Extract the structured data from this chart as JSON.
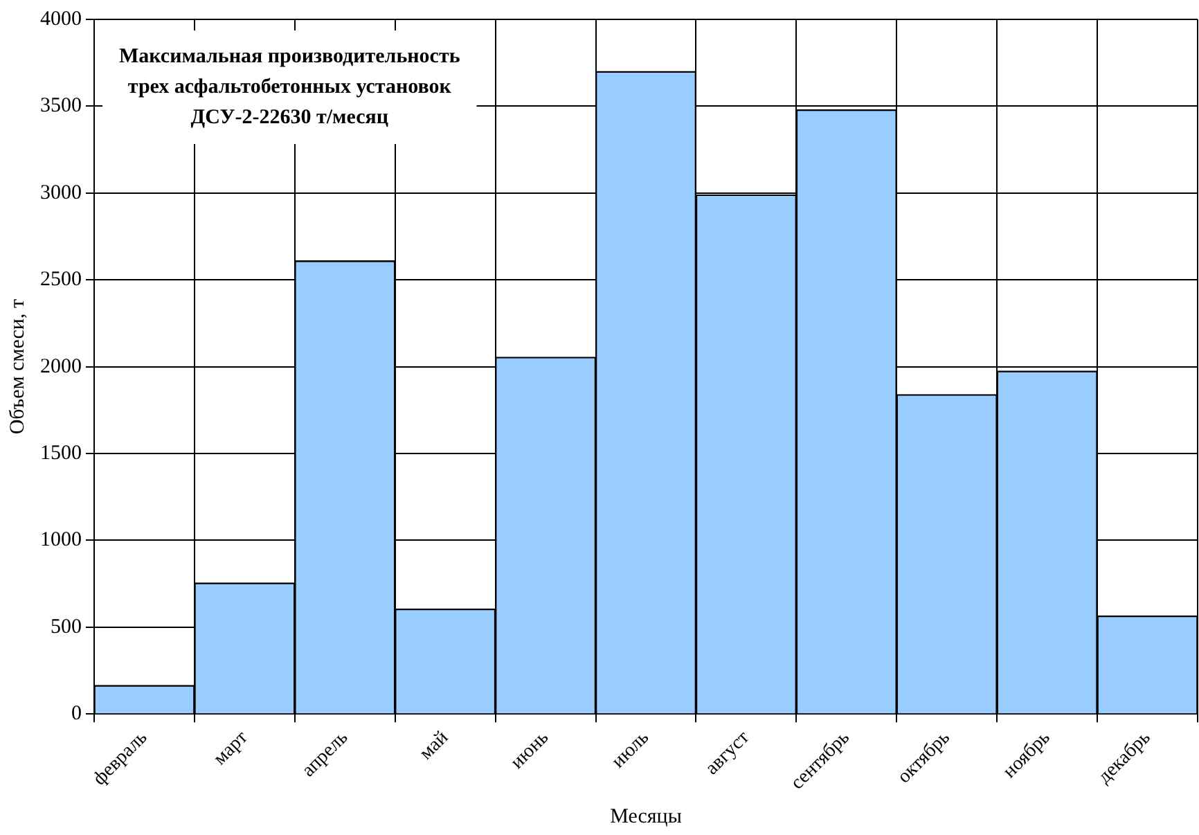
{
  "chart_data": {
    "type": "bar",
    "title": "Максимальная производительность\nтрех асфальтобетонных установок\nДСУ-2-22630 т/месяц",
    "xlabel": "Месяцы",
    "ylabel": "Объем смеси, т",
    "categories": [
      "февраль",
      "март",
      "апрель",
      "май",
      "июнь",
      "июль",
      "август",
      "сентябрь",
      "октябрь",
      "ноябрь",
      "декабрь"
    ],
    "values": [
      165,
      755,
      2610,
      605,
      2055,
      3700,
      2990,
      3480,
      1840,
      1975,
      565
    ],
    "color": "#99ccff",
    "ylim": [
      0,
      4000
    ],
    "yticks": [
      0,
      500,
      1000,
      1500,
      2000,
      2500,
      3000,
      3500,
      4000
    ],
    "grid": true,
    "legend": false
  }
}
